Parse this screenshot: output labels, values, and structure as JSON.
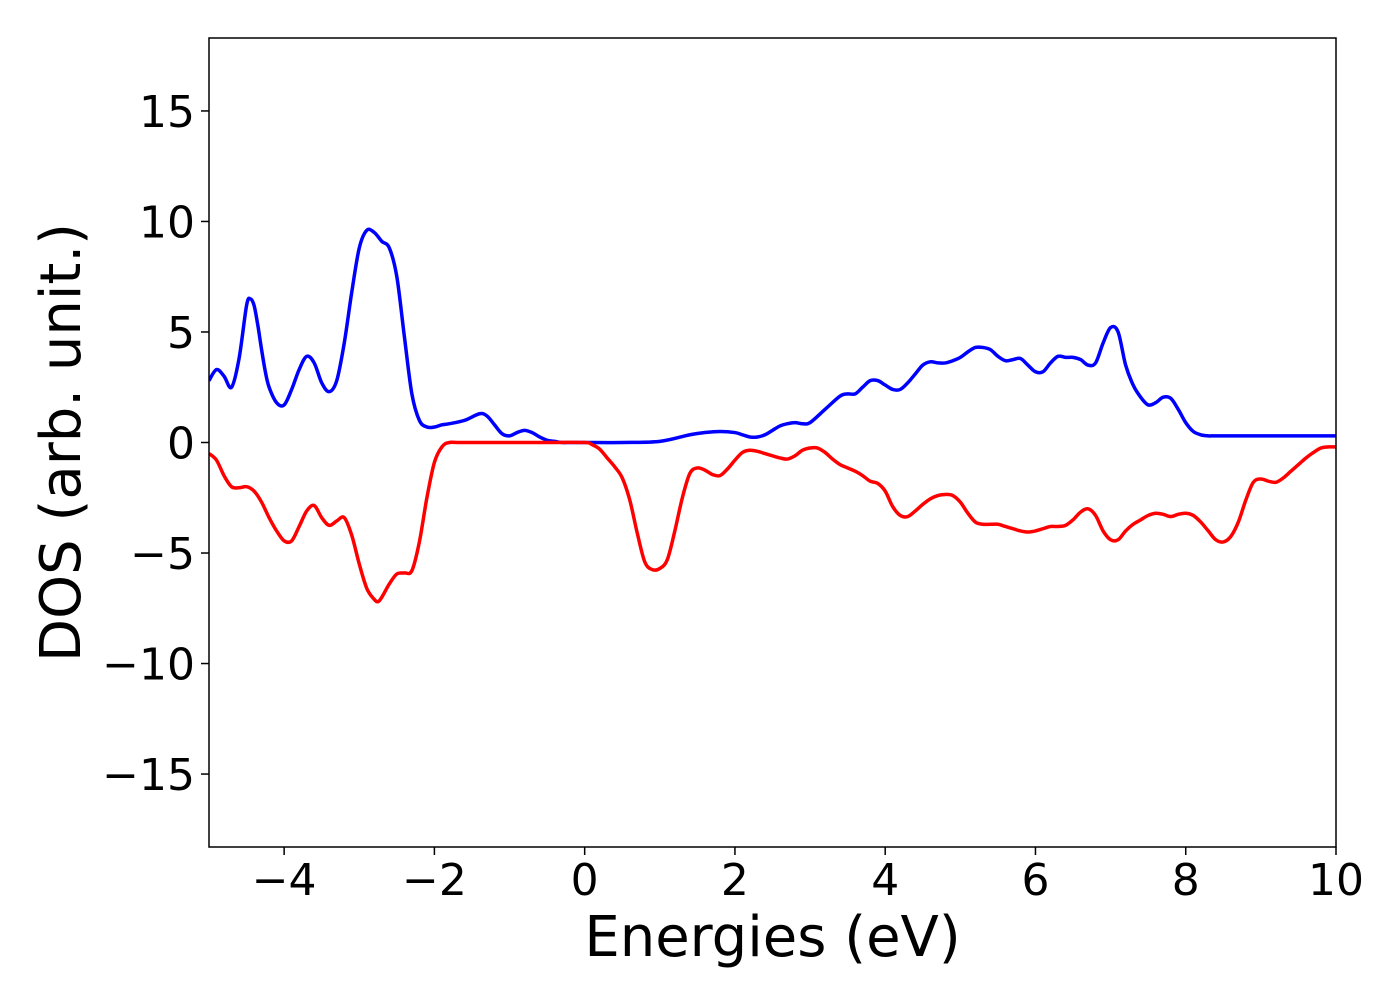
{
  "chart_data": {
    "type": "line",
    "title": "",
    "xlabel": "Energies (eV)",
    "ylabel": "DOS (arb. unit.)",
    "xlim": [
      -5,
      10
    ],
    "ylim": [
      -18.3,
      18.3
    ],
    "xticks": [
      -4,
      -2,
      0,
      2,
      4,
      6,
      8,
      10
    ],
    "xtick_labels": [
      "−4",
      "−2",
      "0",
      "2",
      "4",
      "6",
      "8",
      "10"
    ],
    "yticks": [
      -15,
      -10,
      -5,
      0,
      5,
      10,
      15
    ],
    "ytick_labels": [
      "−15",
      "−10",
      "−5",
      "0",
      "5",
      "10",
      "15"
    ],
    "grid": false,
    "legend": "none",
    "series": [
      {
        "color": "#0000ff",
        "x": [
          -5.0,
          -4.9,
          -4.8,
          -4.7,
          -4.6,
          -4.5,
          -4.45,
          -4.4,
          -4.35,
          -4.3,
          -4.25,
          -4.2,
          -4.1,
          -4.0,
          -3.9,
          -3.8,
          -3.7,
          -3.6,
          -3.5,
          -3.4,
          -3.3,
          -3.2,
          -3.1,
          -3.0,
          -2.9,
          -2.8,
          -2.7,
          -2.6,
          -2.5,
          -2.4,
          -2.3,
          -2.2,
          -2.1,
          -2.0,
          -1.9,
          -1.8,
          -1.6,
          -1.4,
          -1.3,
          -1.2,
          -1.1,
          -1.0,
          -0.9,
          -0.8,
          -0.7,
          -0.6,
          -0.5,
          -0.4,
          -0.3,
          -0.2,
          -0.1,
          0.0,
          0.5,
          1.0,
          1.4,
          1.6,
          1.8,
          2.0,
          2.1,
          2.2,
          2.3,
          2.4,
          2.5,
          2.6,
          2.7,
          2.8,
          2.9,
          3.0,
          3.2,
          3.4,
          3.5,
          3.6,
          3.7,
          3.8,
          3.9,
          4.0,
          4.1,
          4.2,
          4.3,
          4.4,
          4.5,
          4.6,
          4.7,
          4.8,
          4.9,
          5.0,
          5.1,
          5.2,
          5.3,
          5.4,
          5.5,
          5.6,
          5.7,
          5.8,
          5.9,
          6.0,
          6.1,
          6.2,
          6.3,
          6.4,
          6.5,
          6.6,
          6.7,
          6.8,
          6.9,
          7.0,
          7.1,
          7.2,
          7.3,
          7.4,
          7.5,
          7.6,
          7.7,
          7.8,
          7.9,
          8.0,
          8.1,
          8.2,
          8.3,
          8.35,
          8.4,
          8.5,
          8.6,
          8.7,
          8.8,
          8.9,
          9.0,
          9.1,
          9.2,
          9.3,
          9.4,
          9.5,
          9.6,
          9.7,
          9.8,
          9.9,
          10.0
        ],
        "y": [
          2.8,
          3.3,
          3.0,
          2.5,
          3.8,
          6.2,
          6.5,
          6.2,
          5.3,
          4.2,
          3.2,
          2.5,
          1.8,
          1.7,
          2.4,
          3.3,
          3.9,
          3.6,
          2.7,
          2.3,
          2.8,
          4.5,
          6.8,
          8.8,
          9.6,
          9.5,
          9.1,
          8.8,
          7.5,
          4.8,
          2.2,
          1.0,
          0.7,
          0.7,
          0.8,
          0.85,
          1.0,
          1.3,
          1.2,
          0.8,
          0.4,
          0.3,
          0.45,
          0.55,
          0.45,
          0.25,
          0.1,
          0.05,
          0.0,
          0.0,
          0.0,
          0.0,
          0.0,
          0.05,
          0.35,
          0.45,
          0.5,
          0.45,
          0.35,
          0.25,
          0.25,
          0.35,
          0.55,
          0.75,
          0.85,
          0.9,
          0.85,
          0.9,
          1.5,
          2.1,
          2.2,
          2.2,
          2.5,
          2.8,
          2.8,
          2.6,
          2.4,
          2.4,
          2.7,
          3.1,
          3.5,
          3.65,
          3.6,
          3.6,
          3.7,
          3.85,
          4.1,
          4.3,
          4.3,
          4.2,
          3.9,
          3.7,
          3.75,
          3.8,
          3.5,
          3.2,
          3.2,
          3.6,
          3.9,
          3.85,
          3.85,
          3.75,
          3.5,
          3.6,
          4.5,
          5.2,
          5.0,
          3.5,
          2.6,
          2.05,
          1.7,
          1.8,
          2.05,
          2.0,
          1.5,
          0.9,
          0.5,
          0.35,
          0.3,
          0.3,
          0.3,
          0.3,
          0.3,
          0.3,
          0.3,
          0.3,
          0.3,
          0.3,
          0.3,
          0.3,
          0.3,
          0.3,
          0.3,
          0.3,
          0.3,
          0.3,
          0.3
        ]
      },
      {
        "color": "#ff0000",
        "x": [
          -5.0,
          -4.9,
          -4.8,
          -4.7,
          -4.6,
          -4.5,
          -4.4,
          -4.3,
          -4.2,
          -4.1,
          -4.0,
          -3.9,
          -3.8,
          -3.7,
          -3.6,
          -3.5,
          -3.4,
          -3.3,
          -3.2,
          -3.1,
          -3.0,
          -2.9,
          -2.8,
          -2.75,
          -2.7,
          -2.6,
          -2.5,
          -2.4,
          -2.3,
          -2.2,
          -2.1,
          -2.0,
          -1.9,
          -1.8,
          -1.6,
          -0.5,
          0.0,
          0.1,
          0.2,
          0.3,
          0.4,
          0.5,
          0.6,
          0.7,
          0.8,
          0.9,
          1.0,
          1.1,
          1.2,
          1.3,
          1.4,
          1.5,
          1.6,
          1.7,
          1.8,
          1.9,
          2.0,
          2.1,
          2.2,
          2.3,
          2.4,
          2.5,
          2.6,
          2.7,
          2.8,
          2.9,
          3.0,
          3.1,
          3.2,
          3.3,
          3.4,
          3.5,
          3.6,
          3.7,
          3.8,
          3.9,
          4.0,
          4.1,
          4.2,
          4.3,
          4.4,
          4.5,
          4.6,
          4.7,
          4.8,
          4.9,
          5.0,
          5.1,
          5.2,
          5.3,
          5.4,
          5.5,
          5.6,
          5.7,
          5.8,
          5.9,
          6.0,
          6.1,
          6.2,
          6.3,
          6.4,
          6.5,
          6.6,
          6.7,
          6.8,
          6.9,
          7.0,
          7.1,
          7.2,
          7.3,
          7.4,
          7.5,
          7.6,
          7.7,
          7.8,
          7.9,
          8.0,
          8.1,
          8.2,
          8.3,
          8.4,
          8.5,
          8.6,
          8.7,
          8.8,
          8.9,
          9.0,
          9.1,
          9.2,
          9.3,
          9.4,
          9.5,
          9.6,
          9.7,
          9.8,
          9.9,
          10.0
        ],
        "y": [
          -0.5,
          -0.8,
          -1.5,
          -2.0,
          -2.05,
          -2.0,
          -2.2,
          -2.7,
          -3.4,
          -4.0,
          -4.45,
          -4.45,
          -3.8,
          -3.1,
          -2.85,
          -3.4,
          -3.75,
          -3.55,
          -3.4,
          -4.2,
          -5.5,
          -6.6,
          -7.1,
          -7.2,
          -7.0,
          -6.4,
          -5.95,
          -5.9,
          -5.8,
          -4.5,
          -2.5,
          -0.9,
          -0.2,
          0.0,
          0.0,
          0.0,
          0.0,
          -0.1,
          -0.3,
          -0.7,
          -1.1,
          -1.6,
          -2.6,
          -4.1,
          -5.4,
          -5.75,
          -5.7,
          -5.3,
          -4.0,
          -2.5,
          -1.4,
          -1.15,
          -1.25,
          -1.45,
          -1.5,
          -1.2,
          -0.8,
          -0.45,
          -0.35,
          -0.4,
          -0.5,
          -0.6,
          -0.7,
          -0.75,
          -0.6,
          -0.35,
          -0.25,
          -0.25,
          -0.45,
          -0.75,
          -1.0,
          -1.15,
          -1.3,
          -1.5,
          -1.75,
          -1.85,
          -2.2,
          -2.9,
          -3.3,
          -3.35,
          -3.1,
          -2.8,
          -2.55,
          -2.4,
          -2.35,
          -2.4,
          -2.7,
          -3.2,
          -3.6,
          -3.7,
          -3.7,
          -3.7,
          -3.8,
          -3.9,
          -4.0,
          -4.05,
          -4.0,
          -3.9,
          -3.8,
          -3.8,
          -3.75,
          -3.5,
          -3.15,
          -3.0,
          -3.3,
          -4.0,
          -4.4,
          -4.4,
          -4.0,
          -3.7,
          -3.5,
          -3.3,
          -3.2,
          -3.25,
          -3.35,
          -3.25,
          -3.2,
          -3.3,
          -3.6,
          -4.0,
          -4.4,
          -4.5,
          -4.25,
          -3.6,
          -2.6,
          -1.8,
          -1.65,
          -1.75,
          -1.8,
          -1.6,
          -1.3,
          -1.0,
          -0.7,
          -0.45,
          -0.25,
          -0.2,
          -0.2
        ]
      }
    ]
  }
}
